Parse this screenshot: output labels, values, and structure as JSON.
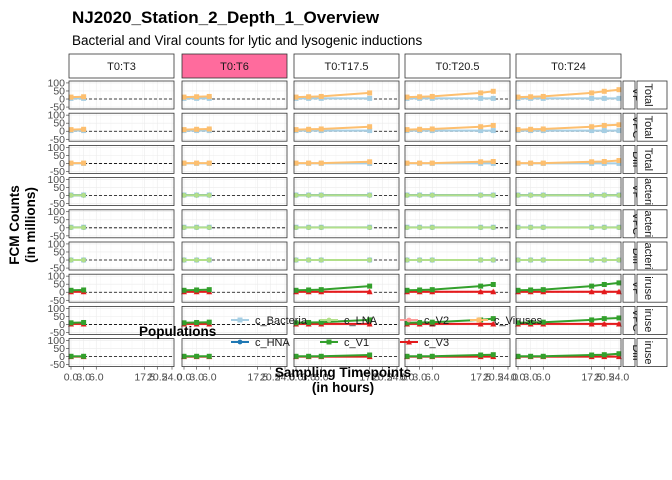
{
  "title": "NJ2020_Station_2_Depth_1_Overview",
  "subtitle": "Bacterial and Viral counts for lytic and lysogenic inductions",
  "chart_data": {
    "type": "line",
    "facet_columns": [
      "T0:T3",
      "T0:T6",
      "T0:T17.5",
      "T0:T20.5",
      "T0:T24"
    ],
    "highlighted_column": "T0:T6",
    "highlight_color": "#ff6b9d",
    "column_max_time": [
      3,
      6,
      17.5,
      20.5,
      24
    ],
    "row_labels": [
      "VP",
      "VPC",
      "Diff",
      "VP",
      "VPC",
      "Diff",
      "VP",
      "VPC",
      "Diff"
    ],
    "row_groups": [
      {
        "name": "Total",
        "display": "Total",
        "rows": [
          0,
          1,
          2
        ]
      },
      {
        "name": "Bacteria",
        "display": "acteri",
        "rows": [
          3,
          4,
          5
        ]
      },
      {
        "name": "Viruses",
        "display": "iruse",
        "rows": [
          6,
          7,
          8
        ]
      }
    ],
    "x_ticks": [
      0,
      3,
      6,
      17.5,
      20.5,
      24
    ],
    "x_tick_labels": [
      "0.0",
      "3.0",
      "6.0",
      "17.5",
      "20.5",
      "24.0"
    ],
    "xlim": [
      0,
      24
    ],
    "y_ticks": [
      100,
      50,
      0,
      -50
    ],
    "y_tick_labels": [
      "100",
      "50",
      "0",
      "-50"
    ],
    "ylim": [
      -62,
      112
    ],
    "reference_line_y": 0,
    "xlabel": "Sampling Timepoints\n(in hours)",
    "ylabel": "FCM Counts\n(in millions)",
    "legend_title": "Populations",
    "legend_position": "bottom",
    "series_meta": [
      {
        "name": "c_Bacteria",
        "color": "#a6cee3",
        "marker": "square"
      },
      {
        "name": "c_HNA",
        "color": "#1f78b4",
        "marker": "circle"
      },
      {
        "name": "c_LNA",
        "color": "#b2df8a",
        "marker": "circle"
      },
      {
        "name": "c_V1",
        "color": "#33a02c",
        "marker": "square"
      },
      {
        "name": "c_V2",
        "color": "#fb9a99",
        "marker": "circle"
      },
      {
        "name": "c_V3",
        "color": "#e31a1c",
        "marker": "triangle"
      },
      {
        "name": "c_Viruses",
        "color": "#fdbf6f",
        "marker": "square"
      }
    ],
    "x": [
      0,
      3,
      6,
      17.5,
      20.5,
      24
    ],
    "rows": [
      {
        "series": [
          {
            "name": "c_Bacteria",
            "values": [
              4,
              4,
              4,
              4,
              4,
              4
            ]
          },
          {
            "name": "c_Viruses",
            "values": [
              12,
              14,
              16,
              38,
              48,
              58
            ]
          }
        ]
      },
      {
        "series": [
          {
            "name": "c_Bacteria",
            "values": [
              4,
              4,
              4,
              4,
              4,
              4
            ]
          },
          {
            "name": "c_Viruses",
            "values": [
              10,
              12,
              14,
              28,
              36,
              40
            ]
          }
        ]
      },
      {
        "series": [
          {
            "name": "c_Bacteria",
            "values": [
              0,
              0,
              0,
              0,
              0,
              0
            ]
          },
          {
            "name": "c_Viruses",
            "values": [
              2,
              2,
              2,
              10,
              12,
              18
            ]
          }
        ]
      },
      {
        "series": [
          {
            "name": "c_Bacteria",
            "values": [
              4,
              4,
              4,
              4,
              4,
              4
            ]
          },
          {
            "name": "c_HNA",
            "values": [
              2,
              2,
              2,
              2,
              2,
              2
            ]
          },
          {
            "name": "c_LNA",
            "values": [
              2,
              2,
              2,
              2,
              2,
              2
            ]
          }
        ]
      },
      {
        "series": [
          {
            "name": "c_Bacteria",
            "values": [
              4,
              4,
              4,
              4,
              4,
              4
            ]
          },
          {
            "name": "c_HNA",
            "values": [
              2,
              2,
              2,
              2,
              2,
              2
            ]
          },
          {
            "name": "c_LNA",
            "values": [
              2,
              2,
              2,
              2,
              2,
              2
            ]
          }
        ]
      },
      {
        "series": [
          {
            "name": "c_Bacteria",
            "values": [
              0,
              0,
              0,
              0,
              0,
              0
            ]
          },
          {
            "name": "c_HNA",
            "values": [
              0,
              0,
              0,
              0,
              0,
              0
            ]
          },
          {
            "name": "c_LNA",
            "values": [
              0,
              0,
              0,
              0,
              0,
              0
            ]
          }
        ]
      },
      {
        "series": [
          {
            "name": "c_V2",
            "values": [
              2,
              2,
              2,
              2,
              2,
              2
            ]
          },
          {
            "name": "c_V3",
            "values": [
              3,
              3,
              3,
              3,
              3,
              3
            ]
          },
          {
            "name": "c_V1",
            "values": [
              12,
              14,
              16,
              38,
              48,
              58
            ]
          }
        ]
      },
      {
        "series": [
          {
            "name": "c_V2",
            "values": [
              2,
              2,
              2,
              2,
              2,
              2
            ]
          },
          {
            "name": "c_V3",
            "values": [
              3,
              3,
              3,
              3,
              3,
              3
            ]
          },
          {
            "name": "c_V1",
            "values": [
              10,
              12,
              14,
              28,
              36,
              40
            ]
          }
        ]
      },
      {
        "series": [
          {
            "name": "c_V2",
            "values": [
              0,
              0,
              0,
              0,
              0,
              0
            ]
          },
          {
            "name": "c_V3",
            "values": [
              0,
              0,
              0,
              0,
              0,
              0
            ]
          },
          {
            "name": "c_V1",
            "values": [
              2,
              2,
              2,
              10,
              12,
              18
            ]
          }
        ]
      }
    ]
  }
}
